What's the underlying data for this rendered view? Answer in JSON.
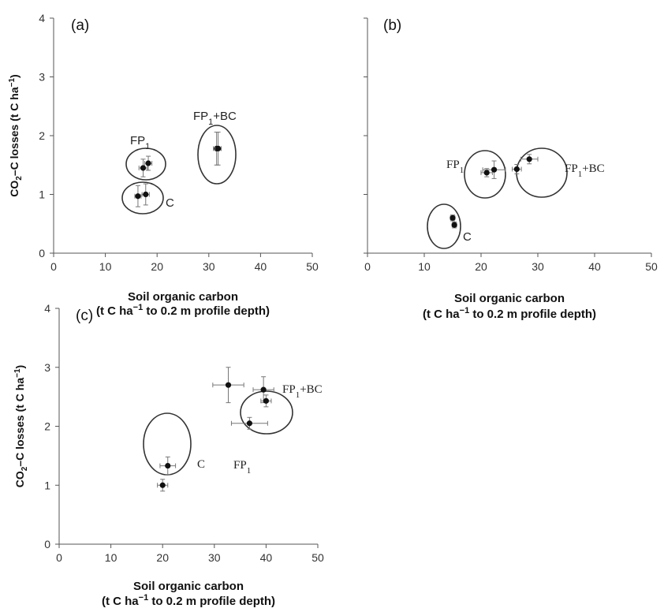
{
  "chart_data": [
    {
      "type": "scatter",
      "panel_label": "(a)",
      "xlabel_line1": "Soil organic carbon",
      "xlabel_line2_pre": "(t C ha",
      "xlabel_line2_sup": "−1",
      "xlabel_line2_post": " to 0.2 m profile depth)",
      "ylabel": "CO2–C losses (t C ha−1)",
      "xlim": [
        0,
        50
      ],
      "ylim": [
        0,
        4
      ],
      "x_ticks": [
        "0",
        "10",
        "20",
        "30",
        "40",
        "50"
      ],
      "y_ticks": [
        "0",
        "1",
        "2",
        "3",
        "4"
      ],
      "groups": [
        {
          "label": "C",
          "points": [
            {
              "x": 16.3,
              "y": 0.97,
              "xerr": 0.6,
              "yerr": 0.18
            },
            {
              "x": 17.8,
              "y": 1.0,
              "xerr": 0.7,
              "yerr": 0.18
            }
          ]
        },
        {
          "label": "FP1",
          "points": [
            {
              "x": 17.3,
              "y": 1.45,
              "xerr": 0.8,
              "yerr": 0.15
            },
            {
              "x": 18.3,
              "y": 1.53,
              "xerr": 0.7,
              "yerr": 0.12
            }
          ]
        },
        {
          "label": "FP1+BC",
          "points": [
            {
              "x": 31.5,
              "y": 1.78,
              "xerr": 0.6,
              "yerr": 0.28
            },
            {
              "x": 31.8,
              "y": 1.78,
              "xerr": 0.6,
              "yerr": 0.28
            }
          ]
        }
      ]
    },
    {
      "type": "scatter",
      "panel_label": "(b)",
      "xlabel_line1": "Soil organic carbon",
      "xlabel_line2_pre": "(t C ha",
      "xlabel_line2_sup": "−1",
      "xlabel_line2_post": " to 0.2 m profile depth)",
      "xlim": [
        0,
        50
      ],
      "ylim": [
        0,
        4
      ],
      "x_ticks": [
        "0",
        "10",
        "20",
        "30",
        "40",
        "50"
      ],
      "groups": [
        {
          "label": "C",
          "points": [
            {
              "x": 15.0,
              "y": 0.6,
              "xerr": 0.4,
              "yerr": 0.05
            },
            {
              "x": 15.3,
              "y": 0.48,
              "xerr": 0.4,
              "yerr": 0.05
            }
          ]
        },
        {
          "label": "FP1",
          "points": [
            {
              "x": 21.0,
              "y": 1.37,
              "xerr": 1.0,
              "yerr": 0.07
            },
            {
              "x": 22.3,
              "y": 1.42,
              "xerr": 2.0,
              "yerr": 0.15
            }
          ]
        },
        {
          "label": "FP1+BC",
          "points": [
            {
              "x": 26.3,
              "y": 1.43,
              "xerr": 0.8,
              "yerr": 0.08
            },
            {
              "x": 28.5,
              "y": 1.6,
              "xerr": 1.5,
              "yerr": 0.08
            }
          ]
        }
      ]
    },
    {
      "type": "scatter",
      "panel_label": "(c)",
      "xlabel_line1": "Soil organic carbon",
      "xlabel_line2_pre": "(t C ha",
      "xlabel_line2_sup": "−1",
      "xlabel_line2_post": " to 0.2 m profile depth)",
      "ylabel": "CO2–C losses (t C ha−1)",
      "xlim": [
        0,
        50
      ],
      "ylim": [
        0,
        4
      ],
      "x_ticks": [
        "0",
        "10",
        "20",
        "30",
        "40",
        "50"
      ],
      "y_ticks": [
        "0",
        "1",
        "2",
        "3",
        "4"
      ],
      "groups": [
        {
          "label": "C",
          "points": [
            {
              "x": 20.0,
              "y": 1.0,
              "xerr": 1.0,
              "yerr": 0.1
            },
            {
              "x": 21.0,
              "y": 1.33,
              "xerr": 1.5,
              "yerr": 0.15
            }
          ]
        },
        {
          "label": "FP1",
          "points": [
            {
              "x": 36.8,
              "y": 2.05,
              "xerr": 3.5,
              "yerr": 0.1
            },
            {
              "x": 32.7,
              "y": 2.7,
              "xerr": 3.0,
              "yerr": 0.3
            }
          ]
        },
        {
          "label": "FP1+BC",
          "points": [
            {
              "x": 39.5,
              "y": 2.62,
              "xerr": 2.0,
              "yerr": 0.22
            },
            {
              "x": 40.0,
              "y": 2.43,
              "xerr": 1.0,
              "yerr": 0.1
            }
          ]
        }
      ]
    }
  ]
}
